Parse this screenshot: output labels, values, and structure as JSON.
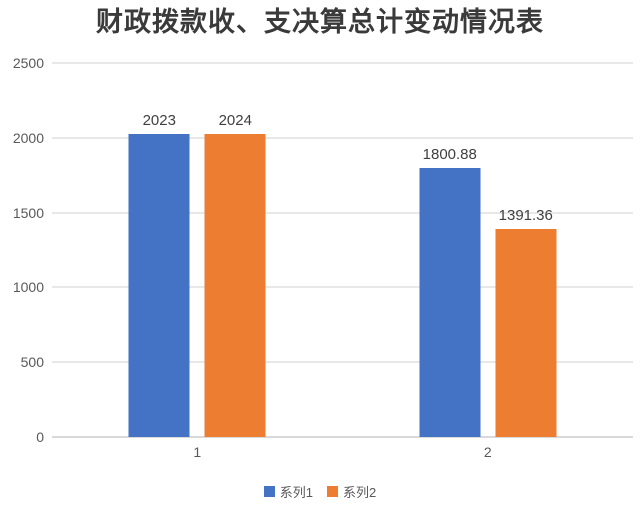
{
  "chart_data": {
    "type": "bar",
    "title": "财政拨款收、支决算总计变动情况表",
    "categories": [
      "1",
      "2"
    ],
    "series": [
      {
        "name": "系列1",
        "color": "#4472C4",
        "values": [
          2023,
          1800.88
        ]
      },
      {
        "name": "系列2",
        "color": "#ED7D31",
        "values": [
          2024,
          1391.36
        ]
      }
    ],
    "data_labels": {
      "series1": [
        "2023",
        "1800.88"
      ],
      "series2": [
        "2024",
        "1391.36"
      ]
    },
    "ylim": [
      0,
      2500
    ],
    "yticks": [
      "0",
      "500",
      "1000",
      "1500",
      "2000",
      "2500"
    ],
    "grid": true,
    "legend_position": "bottom",
    "colors": {
      "title_text": "#3A3A3A",
      "axis_text": "#595959",
      "data_label_text": "#404040",
      "gridline": "#E8E8E8",
      "baseline": "#D9D9D9",
      "background": "#FFFFFF"
    }
  }
}
